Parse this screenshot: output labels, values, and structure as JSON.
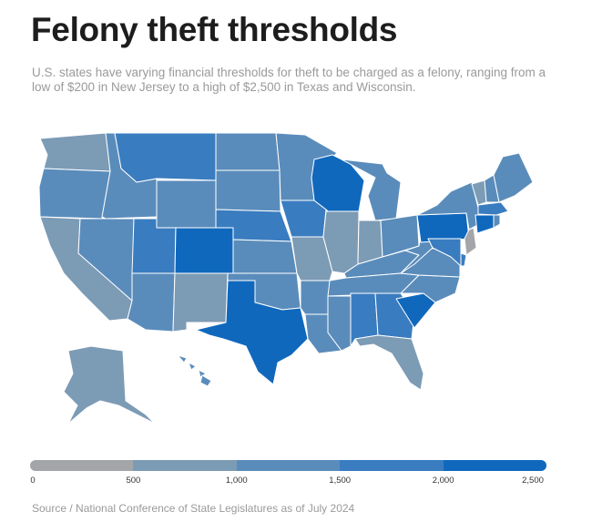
{
  "title": "Felony theft thresholds",
  "subtitle": "U.S. states have varying financial thresholds for theft to be charged as a felony, ranging from a low of $200 in New Jersey to a high of $2,500 in Texas and Wisconsin.",
  "source": "Source / National Conference of State Legislatures as of July 2024",
  "legend": {
    "ticks": [
      "0",
      "500",
      "1,000",
      "1,500",
      "2,000",
      "2,500"
    ],
    "bins": [
      {
        "min": 0,
        "max": 500,
        "color": "#a4a5a9"
      },
      {
        "min": 500,
        "max": 1000,
        "color": "#7c9bb5"
      },
      {
        "min": 1000,
        "max": 1500,
        "color": "#5a8cbb"
      },
      {
        "min": 1500,
        "max": 2000,
        "color": "#3a7cc0"
      },
      {
        "min": 2000,
        "max": 2500,
        "color": "#1068bd"
      }
    ]
  },
  "states": [
    {
      "id": "WA",
      "bin": 1
    },
    {
      "id": "OR",
      "bin": 2
    },
    {
      "id": "CA",
      "bin": 1
    },
    {
      "id": "ID",
      "bin": 2
    },
    {
      "id": "NV",
      "bin": 2
    },
    {
      "id": "MT",
      "bin": 3
    },
    {
      "id": "WY",
      "bin": 2
    },
    {
      "id": "UT",
      "bin": 3
    },
    {
      "id": "AZ",
      "bin": 2
    },
    {
      "id": "CO",
      "bin": 4
    },
    {
      "id": "NM",
      "bin": 1
    },
    {
      "id": "ND",
      "bin": 2
    },
    {
      "id": "SD",
      "bin": 2
    },
    {
      "id": "NE",
      "bin": 3
    },
    {
      "id": "KS",
      "bin": 2
    },
    {
      "id": "OK",
      "bin": 2
    },
    {
      "id": "TX",
      "bin": 4
    },
    {
      "id": "MN",
      "bin": 2
    },
    {
      "id": "IA",
      "bin": 3
    },
    {
      "id": "MO",
      "bin": 1
    },
    {
      "id": "AR",
      "bin": 2
    },
    {
      "id": "LA",
      "bin": 2
    },
    {
      "id": "WI",
      "bin": 4
    },
    {
      "id": "IL",
      "bin": 1
    },
    {
      "id": "MI",
      "bin": 2
    },
    {
      "id": "IN",
      "bin": 1
    },
    {
      "id": "OH",
      "bin": 2
    },
    {
      "id": "KY",
      "bin": 2
    },
    {
      "id": "TN",
      "bin": 2
    },
    {
      "id": "MS",
      "bin": 2
    },
    {
      "id": "AL",
      "bin": 3
    },
    {
      "id": "GA",
      "bin": 3
    },
    {
      "id": "FL",
      "bin": 1
    },
    {
      "id": "SC",
      "bin": 4
    },
    {
      "id": "NC",
      "bin": 2
    },
    {
      "id": "VA",
      "bin": 2
    },
    {
      "id": "WV",
      "bin": 2
    },
    {
      "id": "PA",
      "bin": 4
    },
    {
      "id": "NY",
      "bin": 2
    },
    {
      "id": "VT",
      "bin": 1
    },
    {
      "id": "NH",
      "bin": 2
    },
    {
      "id": "ME",
      "bin": 2
    },
    {
      "id": "MA",
      "bin": 3
    },
    {
      "id": "CT",
      "bin": 4
    },
    {
      "id": "RI",
      "bin": 2
    },
    {
      "id": "NJ",
      "bin": 0
    },
    {
      "id": "DE",
      "bin": 3
    },
    {
      "id": "MD",
      "bin": 3
    },
    {
      "id": "AK",
      "bin": 1
    },
    {
      "id": "HI",
      "bin": 2
    }
  ]
}
